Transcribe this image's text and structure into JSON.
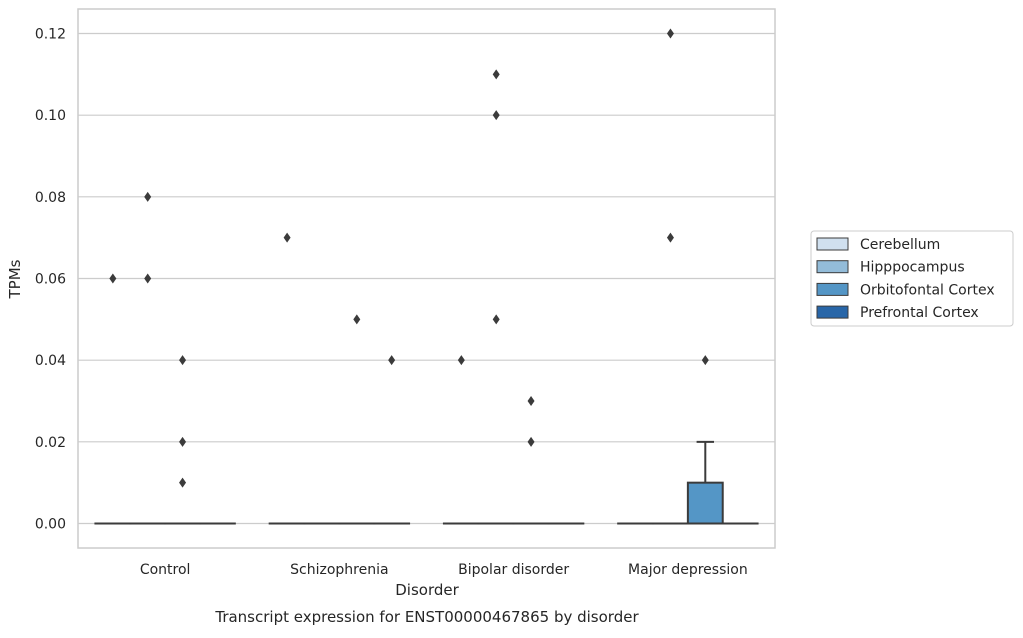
{
  "chart_data": {
    "type": "box",
    "xlabel": "Disorder",
    "ylabel": "TPMs",
    "caption": "Transcript expression for ENST00000467865 by disorder",
    "categories": [
      "Control",
      "Schizophrenia",
      "Bipolar disorder",
      "Major depression"
    ],
    "yticks": [
      "0.00",
      "0.02",
      "0.04",
      "0.06",
      "0.08",
      "0.10",
      "0.12"
    ],
    "ylim": [
      -0.006,
      0.126
    ],
    "grid": "horizontal",
    "legend_position": "right",
    "series": [
      {
        "name": "Cerebellum",
        "color": "#d0e0ef",
        "boxes": [
          {
            "q1": 0,
            "median": 0,
            "q3": 0,
            "whisker_low": 0,
            "whisker_high": 0,
            "outliers": [
              0.06
            ]
          },
          {
            "q1": 0,
            "median": 0,
            "q3": 0,
            "whisker_low": 0,
            "whisker_high": 0,
            "outliers": [
              0.07
            ]
          },
          {
            "q1": 0,
            "median": 0,
            "q3": 0,
            "whisker_low": 0,
            "whisker_high": 0,
            "outliers": [
              0.04
            ]
          },
          {
            "q1": 0,
            "median": 0,
            "q3": 0,
            "whisker_low": 0,
            "whisker_high": 0,
            "outliers": []
          }
        ]
      },
      {
        "name": "Hipppocampus",
        "color": "#93bcd9",
        "boxes": [
          {
            "q1": 0,
            "median": 0,
            "q3": 0,
            "whisker_low": 0,
            "whisker_high": 0,
            "outliers": [
              0.08,
              0.06
            ]
          },
          {
            "q1": 0,
            "median": 0,
            "q3": 0,
            "whisker_low": 0,
            "whisker_high": 0,
            "outliers": []
          },
          {
            "q1": 0,
            "median": 0,
            "q3": 0,
            "whisker_low": 0,
            "whisker_high": 0,
            "outliers": [
              0.11,
              0.1,
              0.05
            ]
          },
          {
            "q1": 0,
            "median": 0,
            "q3": 0,
            "whisker_low": 0,
            "whisker_high": 0,
            "outliers": [
              0.12,
              0.07
            ]
          }
        ]
      },
      {
        "name": "Orbitofontal Cortex",
        "color": "#5496c6",
        "boxes": [
          {
            "q1": 0,
            "median": 0,
            "q3": 0,
            "whisker_low": 0,
            "whisker_high": 0,
            "outliers": [
              0.04,
              0.02,
              0.01
            ]
          },
          {
            "q1": 0,
            "median": 0,
            "q3": 0,
            "whisker_low": 0,
            "whisker_high": 0,
            "outliers": [
              0.05
            ]
          },
          {
            "q1": 0,
            "median": 0,
            "q3": 0,
            "whisker_low": 0,
            "whisker_high": 0,
            "outliers": [
              0.03,
              0.02
            ]
          },
          {
            "q1": 0,
            "median": 0,
            "q3": 0.01,
            "whisker_low": 0,
            "whisker_high": 0.02,
            "outliers": [
              0.04
            ]
          }
        ]
      },
      {
        "name": "Prefrontal Cortex",
        "color": "#2866a8",
        "boxes": [
          {
            "q1": 0,
            "median": 0,
            "q3": 0,
            "whisker_low": 0,
            "whisker_high": 0,
            "outliers": []
          },
          {
            "q1": 0,
            "median": 0,
            "q3": 0,
            "whisker_low": 0,
            "whisker_high": 0,
            "outliers": [
              0.04
            ]
          },
          {
            "q1": 0,
            "median": 0,
            "q3": 0,
            "whisker_low": 0,
            "whisker_high": 0,
            "outliers": []
          },
          {
            "q1": 0,
            "median": 0,
            "q3": 0,
            "whisker_low": 0,
            "whisker_high": 0,
            "outliers": []
          }
        ]
      }
    ]
  }
}
